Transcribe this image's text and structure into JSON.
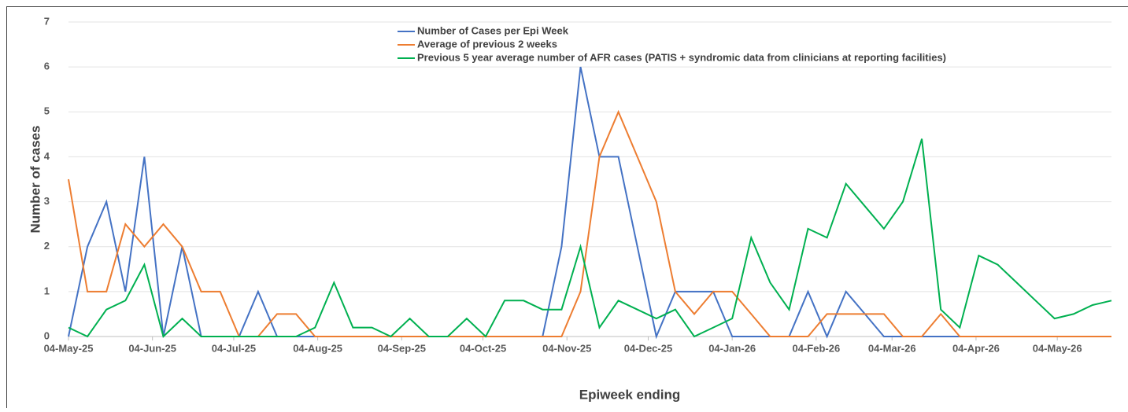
{
  "chart_data": {
    "type": "line",
    "y_label": "Number of cases",
    "x_label": "Epiweek ending",
    "x": [
      "2025-05-04",
      "2025-05-11",
      "2025-05-18",
      "2025-05-25",
      "2025-06-01",
      "2025-06-08",
      "2025-06-15",
      "2025-06-22",
      "2025-06-29",
      "2025-07-06",
      "2025-07-13",
      "2025-07-20",
      "2025-07-27",
      "2025-08-03",
      "2025-08-10",
      "2025-08-17",
      "2025-08-24",
      "2025-08-31",
      "2025-09-07",
      "2025-09-14",
      "2025-09-21",
      "2025-09-28",
      "2025-10-05",
      "2025-10-12",
      "2025-10-19",
      "2025-10-26",
      "2025-11-02",
      "2025-11-09",
      "2025-11-16",
      "2025-11-23",
      "2025-11-30",
      "2025-12-07",
      "2025-12-14",
      "2025-12-21",
      "2025-12-28",
      "2026-01-04",
      "2026-01-11",
      "2026-01-18",
      "2026-01-25",
      "2026-02-01",
      "2026-02-08",
      "2026-02-15",
      "2026-02-22",
      "2026-03-01",
      "2026-03-08",
      "2026-03-15",
      "2026-03-22",
      "2026-03-29",
      "2026-04-05",
      "2026-04-12",
      "2026-04-19",
      "2026-04-26",
      "2026-05-03",
      "2026-05-10",
      "2026-05-17",
      "2026-05-24"
    ],
    "series": [
      {
        "name": "Number of Cases per Epi Week",
        "color": "#4472c4",
        "values": [
          0,
          2,
          3,
          1,
          4,
          0,
          2,
          0,
          0,
          0,
          1,
          0,
          0,
          0,
          0,
          0,
          0,
          0,
          0,
          0,
          0,
          0,
          0,
          0,
          0,
          0,
          2,
          6,
          4,
          4,
          2,
          0,
          1,
          1,
          1,
          0,
          0,
          0,
          0,
          1,
          0,
          1,
          0.5,
          0,
          0,
          0,
          0,
          0,
          0,
          0,
          0,
          0,
          0,
          0,
          0,
          0
        ]
      },
      {
        "name": "Average of previous 2 weeks",
        "color": "#ed7d31",
        "values": [
          3.5,
          1,
          1,
          2.5,
          2,
          2.5,
          2,
          1,
          1,
          0,
          0,
          0.5,
          0.5,
          0,
          0,
          0,
          0,
          0,
          0,
          0,
          0,
          0,
          0,
          0,
          0,
          0,
          0,
          1,
          4,
          5,
          4,
          3,
          1,
          0.5,
          1,
          1,
          0.5,
          0,
          0,
          0,
          0.5,
          0.5,
          0.5,
          0.5,
          0,
          0,
          0.5,
          0,
          0,
          0,
          0,
          0,
          0,
          0,
          0,
          0
        ]
      },
      {
        "name": "Previous 5 year average number of AFR cases (PATIS + syndromic data from clinicians at reporting facilities)",
        "color": "#00b050",
        "values": [
          0.2,
          0,
          0.6,
          0.8,
          1.6,
          0,
          0.4,
          0,
          0,
          0,
          0,
          0,
          0,
          0.2,
          1.2,
          0.2,
          0.2,
          0,
          0.4,
          0,
          0,
          0.4,
          0,
          0.8,
          0.8,
          0.6,
          0.6,
          2,
          0.2,
          0.8,
          0.6,
          0.4,
          0.6,
          0,
          0.2,
          0.4,
          2.2,
          1.2,
          0.6,
          2.4,
          2.2,
          3.4,
          2.9,
          2.4,
          3,
          4.4,
          0.6,
          0.2,
          1.8,
          1.6,
          1.2,
          0.8,
          0.4,
          0.5,
          0.7,
          0.8
        ]
      }
    ],
    "xlim": [
      "2025-05-04",
      "2026-05-24"
    ],
    "xticks": [
      {
        "value": "2025-05-04",
        "label": "04-May-25"
      },
      {
        "value": "2025-06-04",
        "label": "04-Jun-25"
      },
      {
        "value": "2025-07-04",
        "label": "04-Jul-25"
      },
      {
        "value": "2025-08-04",
        "label": "04-Aug-25"
      },
      {
        "value": "2025-09-04",
        "label": "04-Sep-25"
      },
      {
        "value": "2025-10-04",
        "label": "04-Oct-25"
      },
      {
        "value": "2025-11-04",
        "label": "04-Nov-25"
      },
      {
        "value": "2025-12-04",
        "label": "04-Dec-25"
      },
      {
        "value": "2026-01-04",
        "label": "04-Jan-26"
      },
      {
        "value": "2026-02-04",
        "label": "04-Feb-26"
      },
      {
        "value": "2026-03-04",
        "label": "04-Mar-26"
      },
      {
        "value": "2026-04-04",
        "label": "04-Apr-26"
      },
      {
        "value": "2026-05-04",
        "label": "04-May-26"
      }
    ],
    "ylim": [
      0,
      7
    ],
    "yticks": [
      0,
      1,
      2,
      3,
      4,
      5,
      6,
      7
    ],
    "grid": true
  }
}
